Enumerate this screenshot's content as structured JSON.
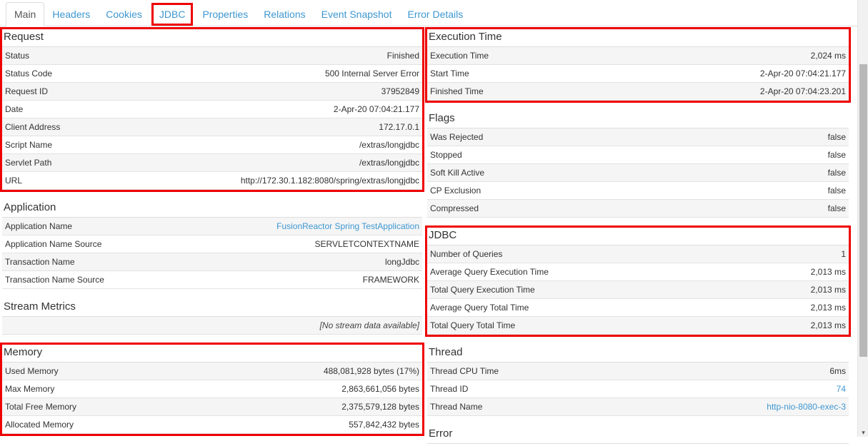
{
  "tabs": {
    "active_tab": "Main",
    "items": [
      {
        "label": "Main",
        "active": true,
        "boxed": false
      },
      {
        "label": "Headers",
        "active": false,
        "boxed": false
      },
      {
        "label": "Cookies",
        "active": false,
        "boxed": false
      },
      {
        "label": "JDBC",
        "active": false,
        "boxed": true
      },
      {
        "label": "Properties",
        "active": false,
        "boxed": false
      },
      {
        "label": "Relations",
        "active": false,
        "boxed": false
      },
      {
        "label": "Event Snapshot",
        "active": false,
        "boxed": false
      },
      {
        "label": "Error Details",
        "active": false,
        "boxed": false
      }
    ]
  },
  "columns": {
    "left": [
      {
        "title": "Request",
        "highlighted": true,
        "rows": [
          {
            "label": "Status",
            "value": "Finished"
          },
          {
            "label": "Status Code",
            "value": "500 Internal Server Error"
          },
          {
            "label": "Request ID",
            "value": "37952849"
          },
          {
            "label": "Date",
            "value": "2-Apr-20 07:04:21.177"
          },
          {
            "label": "Client Address",
            "value": "172.17.0.1"
          },
          {
            "label": "Script Name",
            "value": "/extras/longjdbc"
          },
          {
            "label": "Servlet Path",
            "value": "/extras/longjdbc"
          },
          {
            "label": "URL",
            "value": "http://172.30.1.182:8080/spring/extras/longjdbc"
          }
        ]
      },
      {
        "title": "Application",
        "highlighted": false,
        "rows": [
          {
            "label": "Application Name",
            "value": "FusionReactor Spring TestApplication",
            "link": true
          },
          {
            "label": "Application Name Source",
            "value": "SERVLETCONTEXTNAME"
          },
          {
            "label": "Transaction Name",
            "value": "longJdbc"
          },
          {
            "label": "Transaction Name Source",
            "value": "FRAMEWORK"
          }
        ]
      },
      {
        "title": "Stream Metrics",
        "highlighted": false,
        "rows": [
          {
            "label": "",
            "value": "[No stream data available]",
            "italic": true
          }
        ]
      },
      {
        "title": "Memory",
        "highlighted": true,
        "rows": [
          {
            "label": "Used Memory",
            "value": "488,081,928 bytes (17%)"
          },
          {
            "label": "Max Memory",
            "value": "2,863,661,056 bytes"
          },
          {
            "label": "Total Free Memory",
            "value": "2,375,579,128 bytes"
          },
          {
            "label": "Allocated Memory",
            "value": "557,842,432 bytes"
          }
        ]
      }
    ],
    "right": [
      {
        "title": "Execution Time",
        "highlighted": true,
        "rows": [
          {
            "label": "Execution Time",
            "value": "2,024 ms"
          },
          {
            "label": "Start Time",
            "value": "2-Apr-20 07:04:21.177"
          },
          {
            "label": "Finished Time",
            "value": "2-Apr-20 07:04:23.201"
          }
        ]
      },
      {
        "title": "Flags",
        "highlighted": false,
        "rows": [
          {
            "label": "Was Rejected",
            "value": "false"
          },
          {
            "label": "Stopped",
            "value": "false"
          },
          {
            "label": "Soft Kill Active",
            "value": "false"
          },
          {
            "label": "CP Exclusion",
            "value": "false"
          },
          {
            "label": "Compressed",
            "value": "false"
          }
        ]
      },
      {
        "title": "JDBC",
        "highlighted": true,
        "rows": [
          {
            "label": "Number of Queries",
            "value": "1"
          },
          {
            "label": "Average Query Execution Time",
            "value": "2,013 ms"
          },
          {
            "label": "Total Query Execution Time",
            "value": "2,013 ms"
          },
          {
            "label": "Average Query Total Time",
            "value": "2,013 ms"
          },
          {
            "label": "Total Query Total Time",
            "value": "2,013 ms"
          }
        ]
      },
      {
        "title": "Thread",
        "highlighted": false,
        "rows": [
          {
            "label": "Thread CPU Time",
            "value": "6ms"
          },
          {
            "label": "Thread ID",
            "value": "74",
            "link": true
          },
          {
            "label": "Thread Name",
            "value": "http-nio-8080-exec-3",
            "link": true
          }
        ]
      },
      {
        "title": "Error",
        "highlighted": false,
        "rows": []
      }
    ]
  },
  "colors": {
    "link_blue": "#3e97d1",
    "highlight_red": "#ee0000",
    "stripe_gray": "#f5f5f5",
    "border_gray": "#dddddd"
  }
}
